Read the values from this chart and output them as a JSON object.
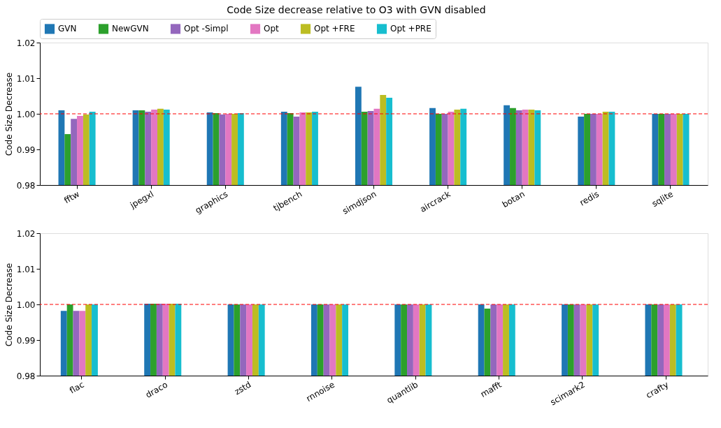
{
  "chart_data": [
    {
      "type": "bar",
      "title": "Code Size decrease relative to O3 with GVN disabled",
      "ylabel": "Code Size Decrease",
      "legend": "top",
      "categories": [
        "fftw",
        "jpegxl",
        "graphics",
        "tjbench",
        "simdjson",
        "aircrack",
        "botan",
        "redis",
        "sqlite"
      ],
      "series": [
        {
          "name": "GVN",
          "color": "#1f77b4",
          "values": [
            1.001,
            1.001,
            1.0004,
            1.0006,
            1.0076,
            1.0016,
            1.0024,
            0.9992,
            1.0
          ]
        },
        {
          "name": "NewGVN",
          "color": "#2ca02c",
          "values": [
            0.9943,
            1.001,
            1.0002,
            1.0002,
            1.0006,
            1.0,
            1.0016,
            1.0,
            1.0
          ]
        },
        {
          "name": "Opt -Simpl",
          "color": "#9467bd",
          "values": [
            0.9986,
            1.0006,
            0.9998,
            0.9992,
            1.0008,
            1.0,
            1.001,
            1.0,
            1.0
          ]
        },
        {
          "name": "Opt",
          "color": "#e377c2",
          "values": [
            0.9994,
            1.0012,
            1.0,
            1.0004,
            1.0014,
            1.0006,
            1.0012,
            1.0,
            1.0
          ]
        },
        {
          "name": "Opt +FRE",
          "color": "#bcbd22",
          "values": [
            0.9998,
            1.0014,
            1.0,
            1.0004,
            1.0053,
            1.0012,
            1.0012,
            1.0006,
            1.0
          ]
        },
        {
          "name": "Opt +PRE",
          "color": "#17becf",
          "values": [
            1.0006,
            1.0012,
            1.0002,
            1.0006,
            1.0045,
            1.0014,
            1.001,
            1.0006,
            1.0
          ]
        }
      ],
      "ylim": [
        0.98,
        1.02
      ],
      "yticks": [
        0.98,
        0.99,
        {
          "value": 1.0,
          "label": "1.00"
        },
        1.01,
        1.02
      ],
      "ref_lines": [
        {
          "axis": "y",
          "value": 1.0,
          "color": "#ff0000",
          "line_style": "dashed"
        }
      ],
      "grid": false
    },
    {
      "type": "bar",
      "ylabel": "Code Size Decrease",
      "legend": false,
      "categories": [
        "flac",
        "draco",
        "zstd",
        "rnnoise",
        "quantlib",
        "mafft",
        "scimark2",
        "crafty"
      ],
      "series": [
        {
          "color": "#1f77b4",
          "values": [
            0.9982,
            1.0002,
            1.0,
            1.0,
            1.0,
            1.0,
            1.0,
            1.0
          ]
        },
        {
          "color": "#2ca02c",
          "values": [
            1.0,
            1.0002,
            1.0,
            1.0,
            1.0,
            0.9988,
            1.0,
            1.0
          ]
        },
        {
          "color": "#9467bd",
          "values": [
            0.9982,
            1.0002,
            1.0,
            1.0,
            1.0,
            1.0,
            1.0,
            1.0
          ]
        },
        {
          "color": "#e377c2",
          "values": [
            0.9982,
            1.0002,
            1.0,
            1.0,
            1.0,
            1.0,
            1.0,
            1.0
          ]
        },
        {
          "color": "#bcbd22",
          "values": [
            1.0,
            1.0002,
            1.0,
            1.0,
            1.0,
            1.0,
            1.0,
            1.0
          ]
        },
        {
          "color": "#17becf",
          "values": [
            1.0,
            1.0002,
            1.0,
            1.0,
            1.0,
            1.0,
            1.0,
            1.0
          ]
        }
      ],
      "ylim": [
        0.98,
        1.02
      ],
      "yticks": [
        0.98,
        0.99,
        {
          "value": 1.0,
          "label": "1.00"
        },
        1.01,
        1.02
      ],
      "ref_lines": [
        {
          "axis": "y",
          "value": 1.0,
          "color": "#ff0000",
          "line_style": "dashed"
        }
      ],
      "grid": false
    }
  ]
}
